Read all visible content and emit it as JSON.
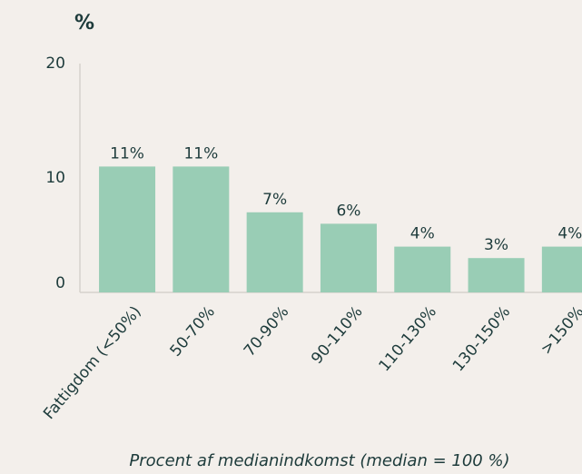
{
  "chart_data": {
    "type": "bar",
    "title": "%",
    "x_label": "Procent af medianindkomst (median = 100 %)",
    "categories": [
      "Fattigdom (<50%)",
      "50-70%",
      "70-90%",
      "90-110%",
      "110-130%",
      "130-150%",
      ">150%"
    ],
    "values": [
      11,
      11,
      7,
      6,
      4,
      3,
      4
    ],
    "value_labels": [
      "11%",
      "11%",
      "7%",
      "6%",
      "4%",
      "3%",
      "4%"
    ],
    "color": "#99cdb5",
    "ylim": [
      0,
      20
    ],
    "yticks": [
      0,
      10,
      20
    ],
    "grid": false
  }
}
